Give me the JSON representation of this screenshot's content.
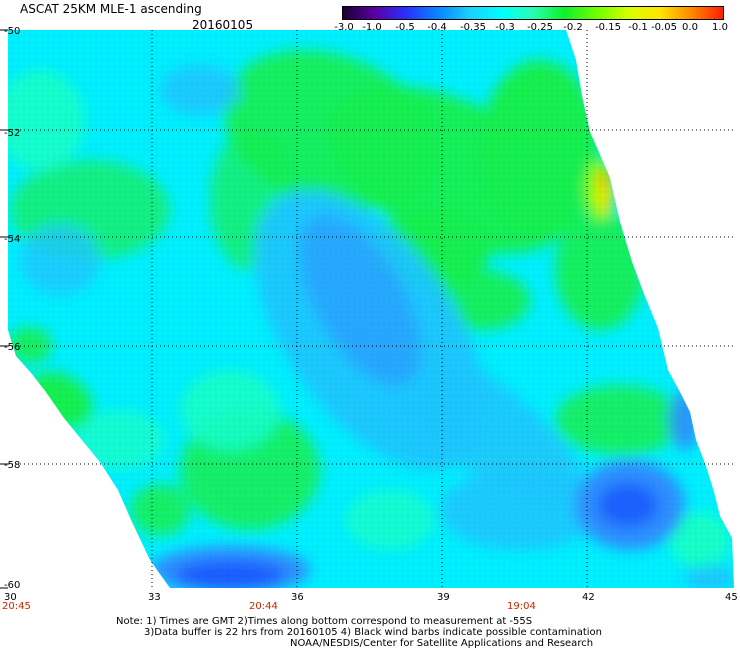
{
  "header": {
    "title": "ASCAT 25KM MLE-1 ascending",
    "date": "20160105"
  },
  "colorbar": {
    "ticks": [
      "-3.0",
      "-1.0",
      "-0.5",
      "-0.4",
      "-0.35",
      "-0.3",
      "-0.25",
      "-0.2",
      "-0.15",
      "-0.1",
      "-0.05",
      "0.0",
      "1.0"
    ],
    "colors": [
      "#1a0033",
      "#5a00a0",
      "#2a30ff",
      "#0a86ff",
      "#18d0ff",
      "#00ffff",
      "#26ffb2",
      "#10f02a",
      "#6dff00",
      "#d4ff00",
      "#ffe600",
      "#ff8800",
      "#ff2000"
    ]
  },
  "axes": {
    "lat_labels": [
      "-50",
      "-52",
      "-54",
      "-56",
      "-58",
      "-60"
    ],
    "lon_labels": [
      "30",
      "33",
      "36",
      "39",
      "42",
      "45"
    ]
  },
  "times": [
    "20:45",
    "20:44",
    "19:04"
  ],
  "notes": {
    "line1": "Note: 1) Times are GMT 2)Times along bottom correspond to measurement at -55S",
    "line2": "3)Data buffer is 22 hrs from 20160105 4) Black wind barbs indicate possible contamination",
    "line3": "NOAA/NESDIS/Center for Satellite Applications and Research"
  },
  "map_palette": {
    "deep_blue": "#1a5cff",
    "mid_blue": "#2f8fff",
    "light_blue": "#1ec6ff",
    "cyan": "#00f0ff",
    "aqua": "#18ffc8",
    "green": "#18f050",
    "lime": "#8cff00",
    "yellow": "#ffe000",
    "orange": "#ff9a00"
  }
}
